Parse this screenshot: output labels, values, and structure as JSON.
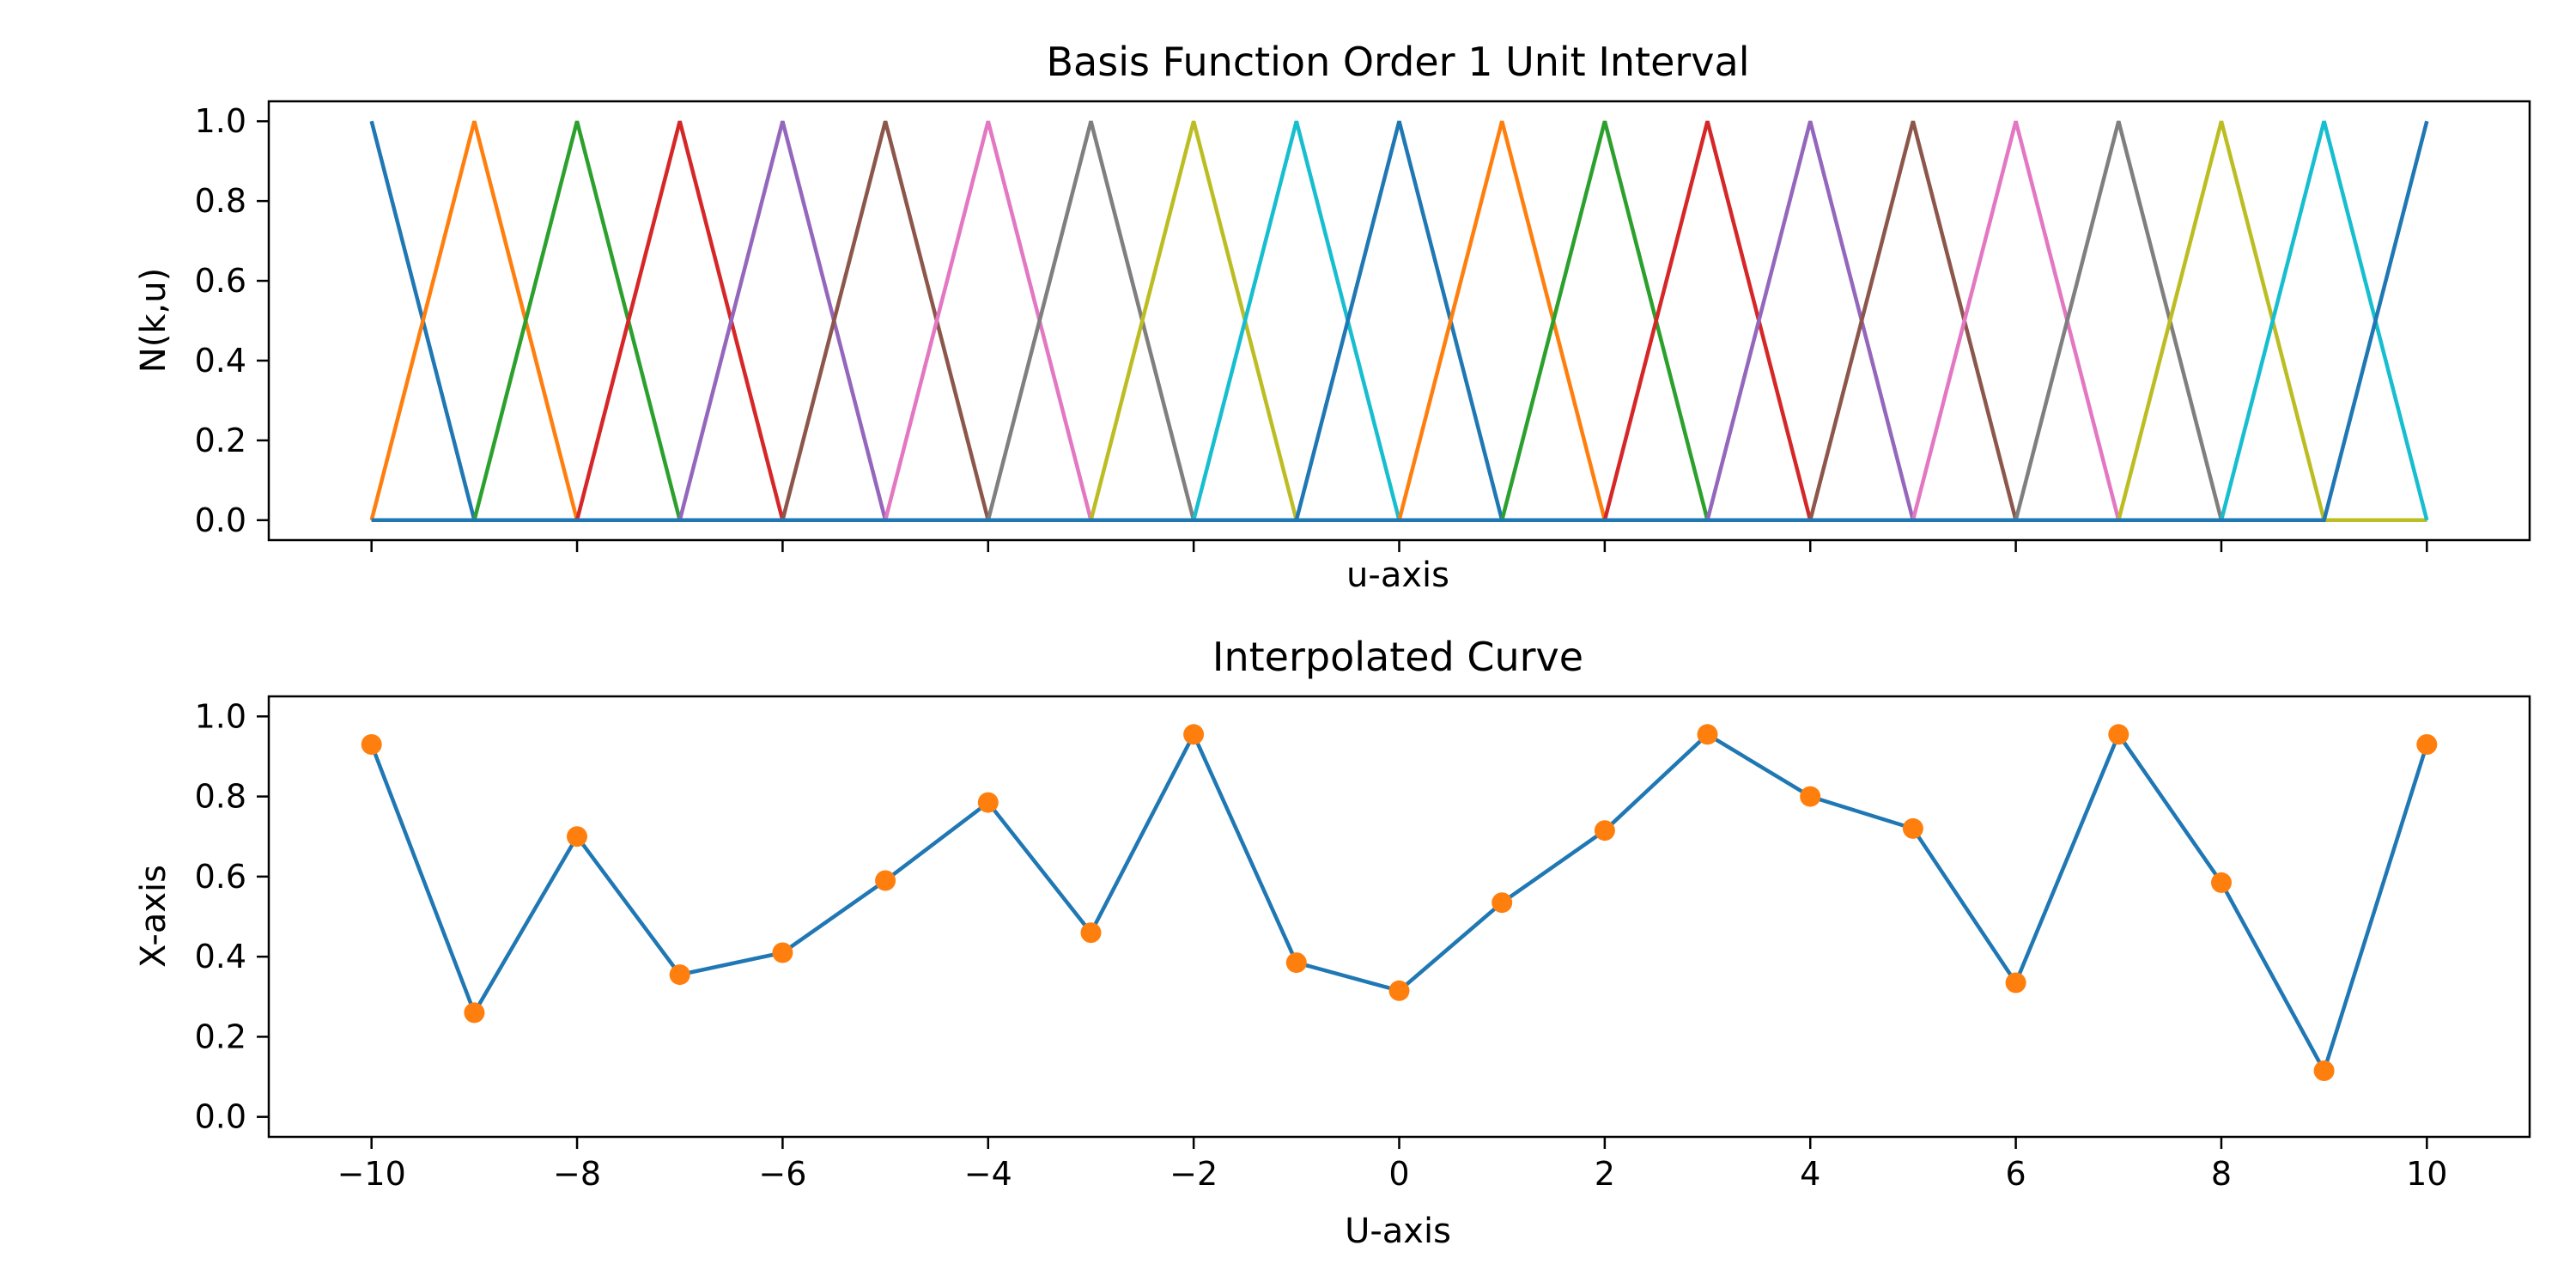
{
  "chart_data": [
    {
      "type": "line",
      "title": "Basis Function Order 1 Unit Interval",
      "xlabel": "u-axis",
      "ylabel": "N(k,u)",
      "xlim": [
        -11,
        11
      ],
      "ylim": [
        -0.05,
        1.05
      ],
      "x_ticks": [
        -10,
        -8,
        -6,
        -4,
        -2,
        0,
        2,
        4,
        6,
        8,
        10
      ],
      "x_tick_labels_shown": false,
      "y_ticks": [
        0.0,
        0.2,
        0.4,
        0.6,
        0.8,
        1.0
      ],
      "y_tick_labels": [
        "0.0",
        "0.2",
        "0.4",
        "0.6",
        "0.8",
        "1.0"
      ],
      "grid": false,
      "basis_order": 1,
      "knots": [
        -10,
        -9,
        -8,
        -7,
        -6,
        -5,
        -4,
        -3,
        -2,
        -1,
        0,
        1,
        2,
        3,
        4,
        5,
        6,
        7,
        8,
        9,
        10
      ],
      "colors": [
        "#1f77b4",
        "#ff7f0e",
        "#2ca02c",
        "#d62728",
        "#9467bd",
        "#8c564b",
        "#e377c2",
        "#7f7f7f",
        "#bcbd22",
        "#17becf"
      ]
    },
    {
      "type": "line",
      "title": "Interpolated Curve",
      "xlabel": "U-axis",
      "ylabel": "X-axis",
      "xlim": [
        -11,
        11
      ],
      "ylim": [
        -0.05,
        1.05
      ],
      "x_ticks": [
        -10,
        -8,
        -6,
        -4,
        -2,
        0,
        2,
        4,
        6,
        8,
        10
      ],
      "x_tick_labels": [
        "−10",
        "−8",
        "−6",
        "−4",
        "−2",
        "0",
        "2",
        "4",
        "6",
        "8",
        "10"
      ],
      "y_ticks": [
        0.0,
        0.2,
        0.4,
        0.6,
        0.8,
        1.0
      ],
      "y_tick_labels": [
        "0.0",
        "0.2",
        "0.4",
        "0.6",
        "0.8",
        "1.0"
      ],
      "grid": false,
      "x": [
        -10,
        -9,
        -8,
        -7,
        -6,
        -5,
        -4,
        -3,
        -2,
        -1,
        0,
        1,
        2,
        3,
        4,
        5,
        6,
        7,
        8,
        9,
        10
      ],
      "values": [
        0.93,
        0.26,
        0.7,
        0.355,
        0.41,
        0.59,
        0.785,
        0.46,
        0.955,
        0.385,
        0.315,
        0.535,
        0.715,
        0.955,
        0.8,
        0.72,
        0.335,
        0.955,
        0.585,
        0.115,
        0.93
      ],
      "line_color": "#1f77b4",
      "marker_color": "#ff7f0e"
    }
  ]
}
